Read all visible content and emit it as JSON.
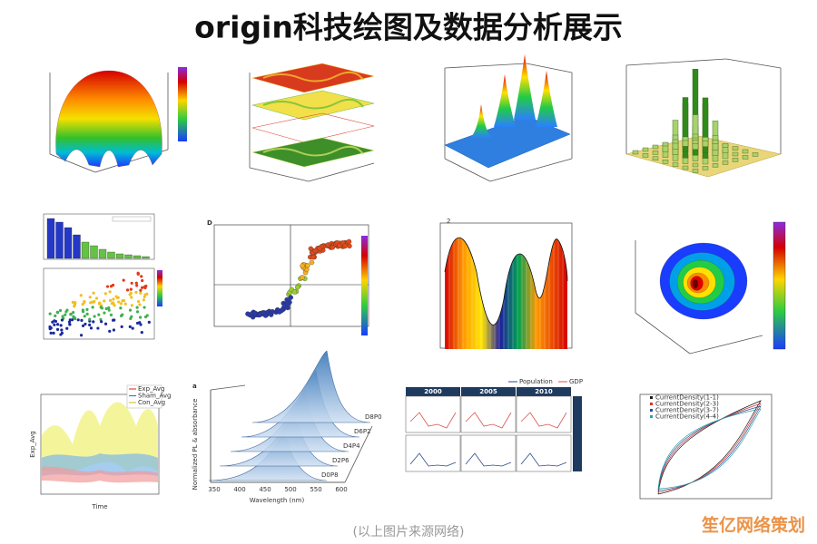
{
  "header": {
    "title": "origin科技绘图及数据分析展示"
  },
  "panels": [
    {
      "label": "D"
    },
    {
      "label": "2"
    },
    {
      "legend": [
        "Exp_Avg",
        "Sham_Avg",
        "Con_Avg"
      ],
      "y_label": "Exp_Avg",
      "x_label": "Time"
    },
    {
      "label": "a",
      "series": [
        "D8P0",
        "D6P2",
        "D4P4",
        "D2P6",
        "D0P8"
      ],
      "x_label": "Wavelength (nm)",
      "y_label": "Normalized PL & absorbance",
      "x_ticks": [
        "350",
        "400",
        "450",
        "500",
        "550",
        "600"
      ]
    },
    {
      "columns": [
        "2000",
        "2005",
        "2010"
      ],
      "legend": [
        "Population",
        "GDP"
      ]
    },
    {
      "legend": [
        "CurrentDensity(1-1)",
        "CurrentDensity(2-3)",
        "CurrentDensity(3-7)",
        "CurrentDensity(4-4)"
      ]
    }
  ],
  "caption": "(以上图片来源网络)",
  "watermark": "笙亿网络策划"
}
